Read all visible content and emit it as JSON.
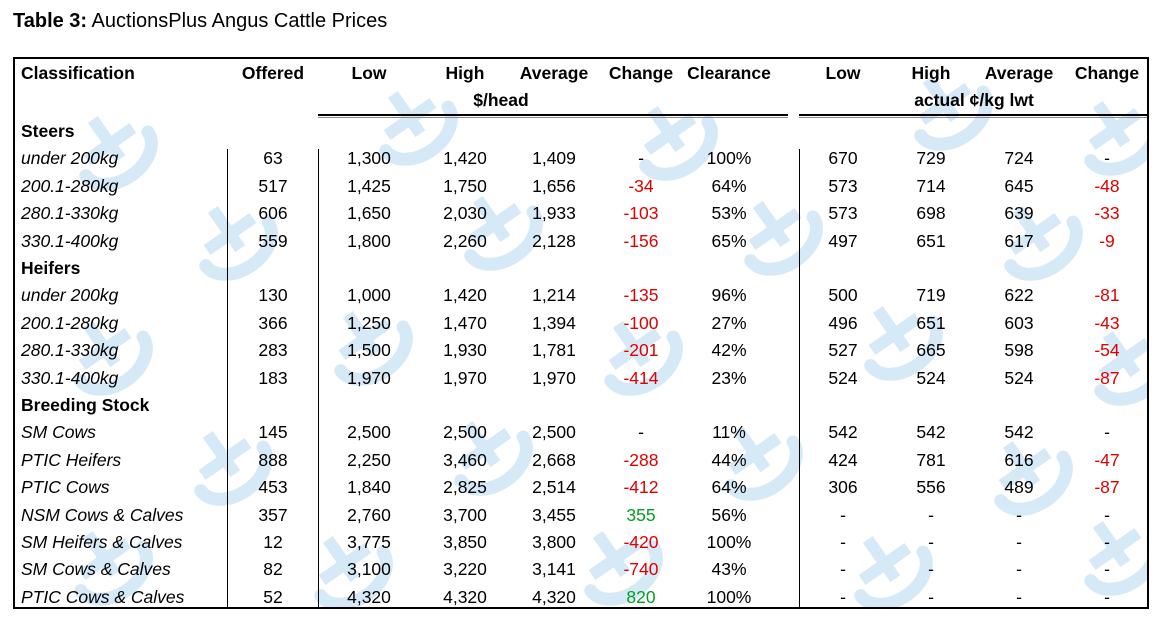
{
  "caption": {
    "bold": "Table 3:",
    "text": "AuctionsPlus Angus Cattle Prices"
  },
  "headers": {
    "classification": "Classification",
    "offered": "Offered",
    "low": "Low",
    "high": "High",
    "average": "Average",
    "change": "Change",
    "clearance": "Clearance",
    "low2": "Low",
    "high2": "High",
    "average2": "Average",
    "change2": "Change",
    "unit_head": "$/head",
    "unit_kg": "actual ¢/kg lwt"
  },
  "sections": [
    {
      "title": "Steers",
      "rows": [
        {
          "label": "under 200kg",
          "offered": "63",
          "low": "1,300",
          "high": "1,420",
          "avg": "1,409",
          "change": "-",
          "clearance": "100%",
          "low2": "670",
          "high2": "729",
          "avg2": "724",
          "change2": "-"
        },
        {
          "label": "200.1-280kg",
          "offered": "517",
          "low": "1,425",
          "high": "1,750",
          "avg": "1,656",
          "change": "-34",
          "clearance": "64%",
          "low2": "573",
          "high2": "714",
          "avg2": "645",
          "change2": "-48"
        },
        {
          "label": "280.1-330kg",
          "offered": "606",
          "low": "1,650",
          "high": "2,030",
          "avg": "1,933",
          "change": "-103",
          "clearance": "53%",
          "low2": "573",
          "high2": "698",
          "avg2": "639",
          "change2": "-33"
        },
        {
          "label": "330.1-400kg",
          "offered": "559",
          "low": "1,800",
          "high": "2,260",
          "avg": "2,128",
          "change": "-156",
          "clearance": "65%",
          "low2": "497",
          "high2": "651",
          "avg2": "617",
          "change2": "-9"
        }
      ]
    },
    {
      "title": "Heifers",
      "rows": [
        {
          "label": "under 200kg",
          "offered": "130",
          "low": "1,000",
          "high": "1,420",
          "avg": "1,214",
          "change": "-135",
          "clearance": "96%",
          "low2": "500",
          "high2": "719",
          "avg2": "622",
          "change2": "-81"
        },
        {
          "label": "200.1-280kg",
          "offered": "366",
          "low": "1,250",
          "high": "1,470",
          "avg": "1,394",
          "change": "-100",
          "clearance": "27%",
          "low2": "496",
          "high2": "651",
          "avg2": "603",
          "change2": "-43"
        },
        {
          "label": "280.1-330kg",
          "offered": "283",
          "low": "1,500",
          "high": "1,930",
          "avg": "1,781",
          "change": "-201",
          "clearance": "42%",
          "low2": "527",
          "high2": "665",
          "avg2": "598",
          "change2": "-54"
        },
        {
          "label": "330.1-400kg",
          "offered": "183",
          "low": "1,970",
          "high": "1,970",
          "avg": "1,970",
          "change": "-414",
          "clearance": "23%",
          "low2": "524",
          "high2": "524",
          "avg2": "524",
          "change2": "-87"
        }
      ]
    },
    {
      "title": "Breeding Stock",
      "rows": [
        {
          "label": "SM Cows",
          "offered": "145",
          "low": "2,500",
          "high": "2,500",
          "avg": "2,500",
          "change": "-",
          "clearance": "11%",
          "low2": "542",
          "high2": "542",
          "avg2": "542",
          "change2": "-"
        },
        {
          "label": "PTIC Heifers",
          "offered": "888",
          "low": "2,250",
          "high": "3,460",
          "avg": "2,668",
          "change": "-288",
          "clearance": "44%",
          "low2": "424",
          "high2": "781",
          "avg2": "616",
          "change2": "-47"
        },
        {
          "label": "PTIC Cows",
          "offered": "453",
          "low": "1,840",
          "high": "2,825",
          "avg": "2,514",
          "change": "-412",
          "clearance": "64%",
          "low2": "306",
          "high2": "556",
          "avg2": "489",
          "change2": "-87"
        },
        {
          "label": "NSM Cows & Calves",
          "offered": "357",
          "low": "2,760",
          "high": "3,700",
          "avg": "3,455",
          "change": "355",
          "clearance": "56%",
          "low2": "-",
          "high2": "-",
          "avg2": "-",
          "change2": "-"
        },
        {
          "label": "SM Heifers & Calves",
          "offered": "12",
          "low": "3,775",
          "high": "3,850",
          "avg": "3,800",
          "change": "-420",
          "clearance": "100%",
          "low2": "-",
          "high2": "-",
          "avg2": "-",
          "change2": "-"
        },
        {
          "label": "SM Cows & Calves",
          "offered": "82",
          "low": "3,100",
          "high": "3,220",
          "avg": "3,141",
          "change": "-740",
          "clearance": "43%",
          "low2": "-",
          "high2": "-",
          "avg2": "-",
          "change2": "-"
        },
        {
          "label": "PTIC Cows & Calves",
          "offered": "52",
          "low": "4,320",
          "high": "4,320",
          "avg": "4,320",
          "change": "820",
          "clearance": "100%",
          "low2": "-",
          "high2": "-",
          "avg2": "-",
          "change2": "-"
        }
      ]
    }
  ],
  "colors": {
    "negative": "#e00000",
    "positive": "#00a020",
    "watermark": "#cfe6f6"
  },
  "watermark_icon": "auctionsplus-logo-icon"
}
